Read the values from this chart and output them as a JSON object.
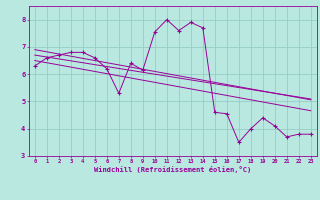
{
  "x": [
    0,
    1,
    2,
    3,
    4,
    5,
    6,
    7,
    8,
    9,
    10,
    11,
    12,
    13,
    14,
    15,
    16,
    17,
    18,
    19,
    20,
    21,
    22,
    23
  ],
  "y_main": [
    6.3,
    6.6,
    6.7,
    6.8,
    6.8,
    6.6,
    6.2,
    5.3,
    6.4,
    6.15,
    7.55,
    8.0,
    7.6,
    7.9,
    7.7,
    4.6,
    4.55,
    3.5,
    4.0,
    4.4,
    4.1,
    3.7,
    3.8,
    3.8
  ],
  "y_trend1": [
    6.9,
    6.82,
    6.74,
    6.66,
    6.58,
    6.5,
    6.42,
    6.34,
    6.26,
    6.18,
    6.1,
    6.02,
    5.94,
    5.86,
    5.78,
    5.7,
    5.62,
    5.54,
    5.46,
    5.38,
    5.3,
    5.22,
    5.14,
    5.06
  ],
  "y_trend2": [
    6.7,
    6.63,
    6.56,
    6.49,
    6.42,
    6.35,
    6.28,
    6.21,
    6.14,
    6.07,
    6.0,
    5.93,
    5.86,
    5.79,
    5.72,
    5.65,
    5.58,
    5.51,
    5.44,
    5.37,
    5.3,
    5.23,
    5.16,
    5.09
  ],
  "y_trend3": [
    6.5,
    6.42,
    6.34,
    6.26,
    6.18,
    6.1,
    6.02,
    5.94,
    5.86,
    5.78,
    5.7,
    5.62,
    5.54,
    5.46,
    5.38,
    5.3,
    5.22,
    5.14,
    5.06,
    4.98,
    4.9,
    4.82,
    4.74,
    4.66
  ],
  "line_color": "#990099",
  "bg_color": "#b8e8e0",
  "grid_color": "#90c8c0",
  "ylim": [
    3,
    8.5
  ],
  "xlim": [
    -0.5,
    23.5
  ],
  "xlabel": "Windchill (Refroidissement éolien,°C)",
  "yticks": [
    3,
    4,
    5,
    6,
    7,
    8
  ],
  "xticks": [
    0,
    1,
    2,
    3,
    4,
    5,
    6,
    7,
    8,
    9,
    10,
    11,
    12,
    13,
    14,
    15,
    16,
    17,
    18,
    19,
    20,
    21,
    22,
    23
  ]
}
